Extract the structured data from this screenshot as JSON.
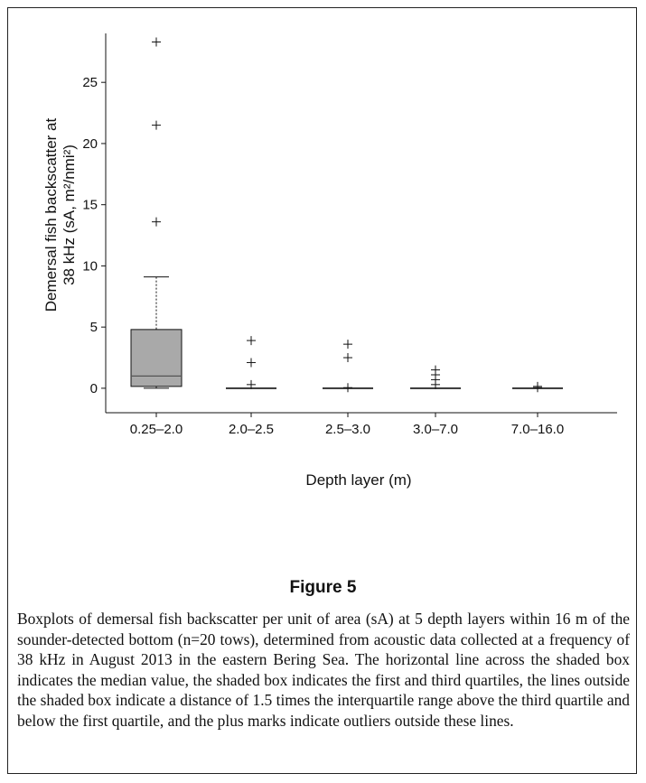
{
  "figure": {
    "title": "Figure 5",
    "caption": "Boxplots of demersal fish backscatter per unit of area (sA) at 5 depth layers within 16 m of the sounder-detected bottom (n=20 tows), determined from acoustic data collected at a frequency of 38 kHz in August 2013 in the eastern Bering Sea. The horizontal line across the shaded box indicates the median value, the shaded box indicates the first and third quartiles, the lines outside the shaded box indicate a distance of 1.5 times the interquartile range above the third quartile and below the first quartile, and the plus marks indicate outliers outside these lines."
  },
  "chart_data": {
    "type": "boxplot",
    "xlabel": "Depth layer (m)",
    "ylabel_line1": "Demersal fish backscatter at",
    "ylabel_line2": "38 kHz (sA, m²/nmi²)",
    "ylim": [
      -2,
      29
    ],
    "yticks": [
      0,
      5,
      10,
      15,
      20,
      25
    ],
    "categories": [
      "0.25–2.0",
      "2.0–2.5",
      "2.5–3.0",
      "3.0–7.0",
      "7.0–16.0"
    ],
    "boxes": [
      {
        "category": "0.25–2.0",
        "whisker_low": 0.0,
        "q1": 0.15,
        "median": 1.0,
        "q3": 4.8,
        "whisker_high": 9.1,
        "outliers": [
          13.6,
          21.5,
          28.3
        ]
      },
      {
        "category": "2.0–2.5",
        "whisker_low": 0.0,
        "q1": 0.0,
        "median": 0.0,
        "q3": 0.0,
        "whisker_high": 0.0,
        "outliers": [
          0.3,
          2.1,
          3.9
        ]
      },
      {
        "category": "2.5–3.0",
        "whisker_low": 0.0,
        "q1": 0.0,
        "median": 0.0,
        "q3": 0.0,
        "whisker_high": 0.0,
        "outliers": [
          0.05,
          2.5,
          3.6
        ]
      },
      {
        "category": "3.0–7.0",
        "whisker_low": 0.0,
        "q1": 0.0,
        "median": 0.0,
        "q3": 0.05,
        "whisker_high": 0.05,
        "outliers": [
          0.3,
          0.7,
          1.1,
          1.5
        ]
      },
      {
        "category": "7.0–16.0",
        "whisker_low": 0.0,
        "q1": 0.0,
        "median": 0.0,
        "q3": 0.0,
        "whisker_high": 0.0,
        "outliers": [
          0.05,
          0.15
        ]
      }
    ],
    "colors": {
      "box_fill": "#a9a9a9",
      "line": "#111111",
      "median": "#555555"
    }
  }
}
